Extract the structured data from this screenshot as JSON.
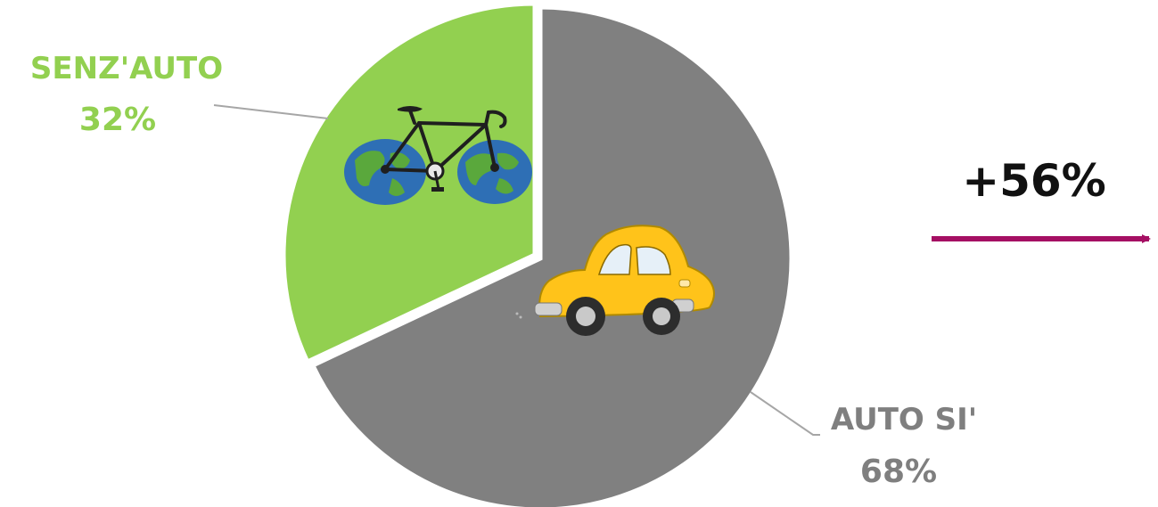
{
  "chart_data": {
    "type": "pie",
    "slices": [
      {
        "label": "SENZ'AUTO",
        "value": 32,
        "value_label": "32%",
        "color": "#92d050",
        "label_color": "#92d050"
      },
      {
        "label": "AUTO SI'",
        "value": 68,
        "value_label": "68%",
        "color": "#808080",
        "label_color": "#7f7f7f"
      }
    ],
    "legend": "none"
  },
  "annotation": {
    "text": "+56%",
    "arrow_color": "#a50f63"
  },
  "icons": {
    "bike": "bicycle-with-globe-wheels-icon",
    "car": "yellow-car-icon"
  }
}
